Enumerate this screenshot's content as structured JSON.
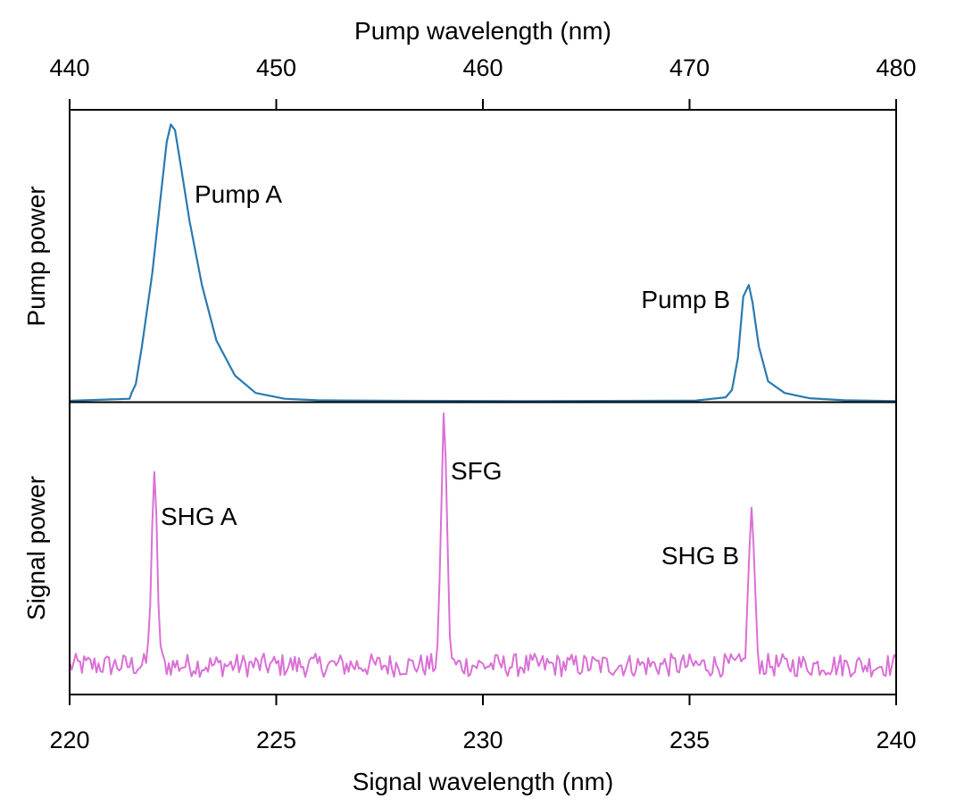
{
  "chart_data": [
    {
      "type": "line",
      "panel": "top",
      "xlabel": "Pump wavelength (nm)",
      "ylabel": "Pump power",
      "xlim": [
        440,
        480
      ],
      "ylim": [
        0,
        1
      ],
      "xticks": [
        "440",
        "450",
        "460",
        "470",
        "480"
      ],
      "yticks_shown": false,
      "x_axis_position": "top",
      "grid": false,
      "color": "#2a7ab0",
      "x": [
        440,
        442.9,
        443.0,
        443.2,
        443.5,
        444.0,
        444.4,
        444.7,
        444.9,
        445.1,
        445.4,
        445.8,
        446.4,
        447.1,
        448.0,
        449.0,
        450.4,
        452.0,
        456.0,
        462.0,
        468.0,
        470.3,
        471.75,
        472.05,
        472.34,
        472.6,
        472.87,
        473.05,
        473.35,
        473.8,
        474.6,
        475.8,
        477.5,
        480
      ],
      "y": [
        0.003,
        0.01,
        0.03,
        0.06,
        0.19,
        0.44,
        0.7,
        0.89,
        0.95,
        0.93,
        0.8,
        0.62,
        0.4,
        0.21,
        0.09,
        0.03,
        0.01,
        0.005,
        0.003,
        0.002,
        0.003,
        0.004,
        0.015,
        0.04,
        0.15,
        0.36,
        0.4,
        0.34,
        0.19,
        0.07,
        0.03,
        0.012,
        0.005,
        0.002
      ],
      "annotations": [
        {
          "text": "Pump A",
          "x": 445.0,
          "y": 0.95
        },
        {
          "text": "Pump B",
          "x": 472.9,
          "y": 0.4
        }
      ]
    },
    {
      "type": "line",
      "panel": "bottom",
      "xlabel": "Signal wavelength (nm)",
      "ylabel": "Signal power",
      "xlim": [
        220,
        240
      ],
      "ylim": [
        0,
        1
      ],
      "xticks": [
        "220",
        "225",
        "230",
        "235",
        "240"
      ],
      "yticks_shown": false,
      "grid": false,
      "color": "#da70d6",
      "baseline": 0.1,
      "noise_amplitude": 0.04,
      "peaks": [
        {
          "name": "SHG A",
          "x": 222.05,
          "y": 0.73
        },
        {
          "name": "SFG",
          "x": 229.06,
          "y": 0.95
        },
        {
          "name": "SHG B",
          "x": 236.5,
          "y": 0.625
        }
      ],
      "annotations": [
        {
          "text": "SHG A",
          "x": 222.05,
          "y": 0.73
        },
        {
          "text": "SFG",
          "x": 229.06,
          "y": 0.95
        },
        {
          "text": "SHG B",
          "x": 236.5,
          "y": 0.625
        }
      ]
    }
  ]
}
